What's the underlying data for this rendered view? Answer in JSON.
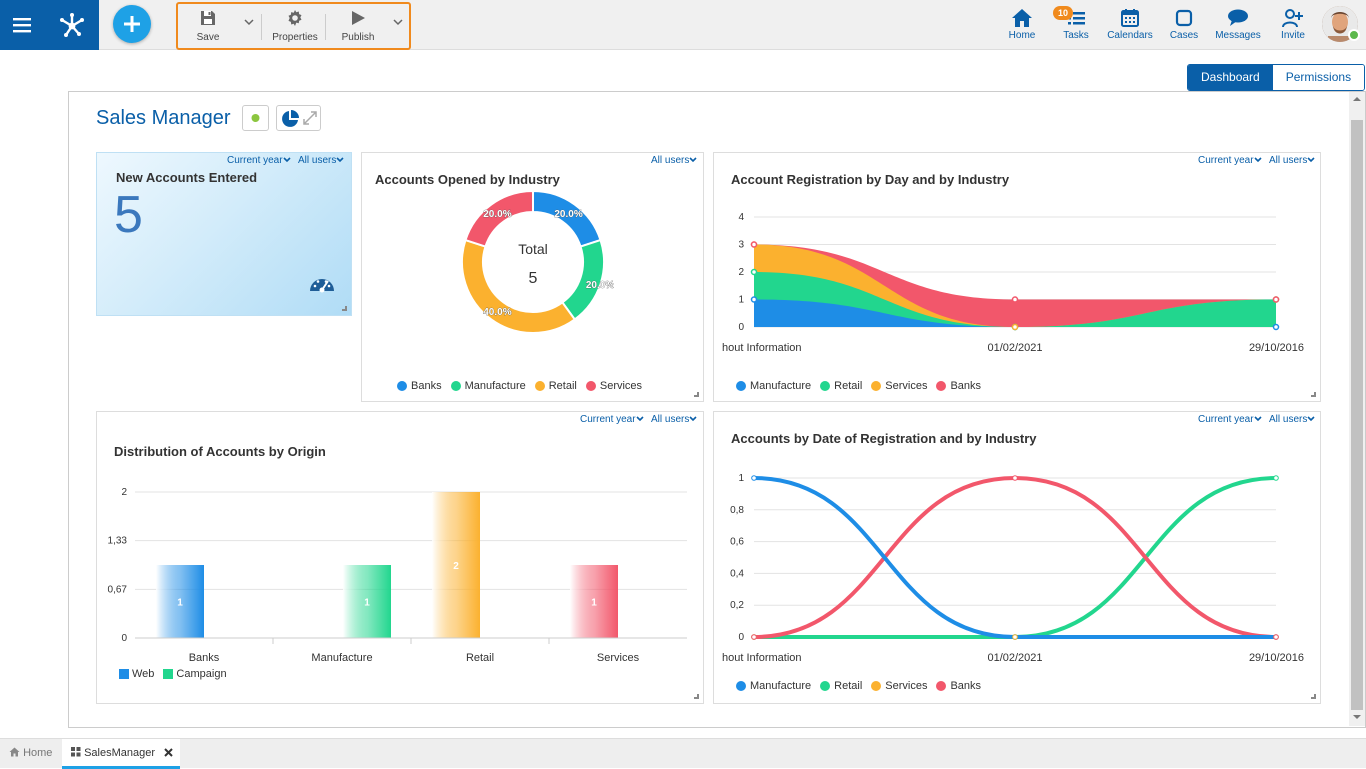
{
  "toolbar": {
    "save_label": "Save",
    "properties_label": "Properties",
    "publish_label": "Publish"
  },
  "nav": {
    "home": "Home",
    "tasks": "Tasks",
    "tasks_badge": "10",
    "calendars": "Calendars",
    "cases": "Cases",
    "messages": "Messages",
    "invite": "Invite"
  },
  "view_tabs": {
    "dashboard": "Dashboard",
    "permissions": "Permissions"
  },
  "page": {
    "title": "Sales Manager"
  },
  "widgets": {
    "new_accounts": {
      "title": "New Accounts Entered",
      "value": "5",
      "filter_period": "Current year",
      "filter_users": "All users"
    },
    "accounts_by_industry": {
      "title": "Accounts Opened by Industry",
      "filter_users": "All users",
      "center_label": "Total",
      "center_value": "5"
    },
    "registration_by_day": {
      "title": "Account Registration by Day and by Industry",
      "filter_period": "Current year",
      "filter_users": "All users"
    },
    "distribution_by_origin": {
      "title": "Distribution of Accounts by Origin",
      "filter_period": "Current year",
      "filter_users": "All users"
    },
    "accounts_by_date": {
      "title": "Accounts by Date of Registration and by Industry",
      "filter_period": "Current year",
      "filter_users": "All users"
    }
  },
  "chart_data": [
    {
      "type": "pie",
      "title": "Accounts Opened by Industry",
      "categories": [
        "Banks",
        "Manufacture",
        "Retail",
        "Services"
      ],
      "values": [
        20,
        20,
        40,
        20
      ],
      "labels": [
        "20.0%",
        "20.0%",
        "40.0%",
        "20.0%"
      ],
      "colors": [
        "#1e8de6",
        "#22d68e",
        "#fbb12f",
        "#f2576b"
      ],
      "center_label": "Total",
      "center_value": "5",
      "legend": "bottom"
    },
    {
      "type": "area",
      "title": "Account Registration by Day and by Industry",
      "x": [
        "hout Information",
        "01/02/2021",
        "29/10/2016"
      ],
      "ylim": [
        0,
        4
      ],
      "yticks": [
        "0",
        "1",
        "2",
        "3",
        "4"
      ],
      "series": [
        {
          "name": "Manufacture",
          "values": [
            1,
            0,
            0
          ],
          "color": "#1e8de6"
        },
        {
          "name": "Retail",
          "values": [
            1,
            0,
            1
          ],
          "color": "#22d68e"
        },
        {
          "name": "Services",
          "values": [
            1,
            0,
            0
          ],
          "color": "#fbb12f"
        },
        {
          "name": "Banks",
          "values": [
            0,
            1,
            0
          ],
          "color": "#f2576b"
        }
      ],
      "stacked": true,
      "legend": "bottom"
    },
    {
      "type": "bar",
      "title": "Distribution of Accounts by Origin",
      "categories": [
        "Banks",
        "Manufacture",
        "Retail",
        "Services"
      ],
      "ylim": [
        0,
        2
      ],
      "yticks": [
        "0",
        "0,67",
        "1,33",
        "2"
      ],
      "bars": [
        {
          "category": "Banks",
          "value": 1,
          "label": "1",
          "color": "#1e8de6"
        },
        {
          "category": "Manufacture",
          "value": 1,
          "label": "1",
          "color": "#22d68e"
        },
        {
          "category": "Retail",
          "value": 2,
          "label": "2",
          "color": "#fbb12f"
        },
        {
          "category": "Services",
          "value": 1,
          "label": "1",
          "color": "#f2576b"
        }
      ],
      "legend_items": [
        {
          "name": "Web",
          "color": "#1e8de6"
        },
        {
          "name": "Campaign",
          "color": "#22d68e"
        }
      ],
      "legend": "bottom-left"
    },
    {
      "type": "line",
      "title": "Accounts by Date of Registration and by Industry",
      "x": [
        "hout Information",
        "01/02/2021",
        "29/10/2016"
      ],
      "ylim": [
        0,
        1
      ],
      "yticks": [
        "0",
        "0,2",
        "0,4",
        "0,6",
        "0,8",
        "1"
      ],
      "series": [
        {
          "name": "Manufacture",
          "values": [
            1,
            0,
            0
          ],
          "color": "#1e8de6"
        },
        {
          "name": "Retail",
          "values": [
            0,
            0,
            1
          ],
          "color": "#22d68e"
        },
        {
          "name": "Services",
          "values": [
            0,
            0,
            0
          ],
          "color": "#fbb12f"
        },
        {
          "name": "Banks",
          "values": [
            0,
            1,
            0
          ],
          "color": "#f2576b"
        }
      ],
      "legend": "bottom"
    }
  ],
  "bottom_tabs": {
    "home": "Home",
    "sales": "SalesManager"
  },
  "colors": {
    "brand": "#0a5fa8",
    "accent": "#f08a1d",
    "add": "#1ea1e6"
  }
}
